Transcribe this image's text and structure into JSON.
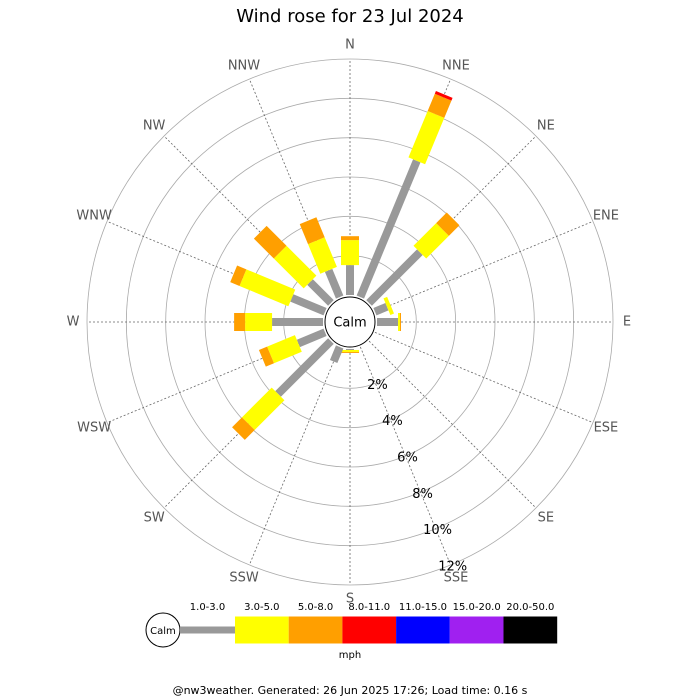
{
  "chart_data": {
    "type": "windrose",
    "title": "Wind rose for 23 Jul 2024",
    "categories": [
      "N",
      "NNE",
      "NE",
      "ENE",
      "E",
      "ESE",
      "SE",
      "SSE",
      "S",
      "SSW",
      "SW",
      "WSW",
      "W",
      "WNW",
      "NW",
      "NNW"
    ],
    "series": [
      {
        "name": "1.0-3.0",
        "color": "#999999",
        "values": [
          1.52,
          7.5,
          3.65,
          0.66,
          1.07,
          0,
          0,
          0,
          0.05,
          0.8,
          3.8,
          1.47,
          2.59,
          1.83,
          1.5,
          1.47
        ]
      },
      {
        "name": "3.0-5.0",
        "color": "#ffff00",
        "values": [
          1.27,
          2.55,
          1.63,
          0.2,
          0.1,
          0,
          0,
          0,
          0.1,
          0,
          2.14,
          1.53,
          1.37,
          2.69,
          2.15,
          1.63
        ]
      },
      {
        "name": "5.0-8.0",
        "color": "#ff9f00",
        "values": [
          0.2,
          0.95,
          0.76,
          0,
          0.05,
          0,
          0,
          0,
          0.05,
          0,
          0.71,
          0.45,
          0.56,
          0.51,
          1.43,
          1.1
        ]
      },
      {
        "name": "8.0-11.0",
        "color": "#ff0000",
        "values": [
          0,
          0.15,
          0,
          0,
          0,
          0,
          0,
          0,
          0,
          0,
          0,
          0,
          0,
          0,
          0,
          0
        ]
      },
      {
        "name": "11.0-15.0",
        "color": "#0000ff",
        "values": [
          0,
          0,
          0,
          0,
          0,
          0,
          0,
          0,
          0,
          0,
          0,
          0,
          0,
          0,
          0,
          0
        ]
      },
      {
        "name": "15.0-20.0",
        "color": "#a020f0",
        "values": [
          0,
          0,
          0,
          0,
          0,
          0,
          0,
          0,
          0,
          0,
          0,
          0,
          0,
          0,
          0,
          0
        ]
      },
      {
        "name": "20.0-50.0",
        "color": "#000000",
        "values": [
          0,
          0,
          0,
          0,
          0,
          0,
          0,
          0,
          0,
          0,
          0,
          0,
          0,
          0,
          0,
          0
        ]
      }
    ],
    "rlim": [
      0,
      12
    ],
    "rticks": [
      {
        "value": 2,
        "label": "2%"
      },
      {
        "value": 4,
        "label": "4%"
      },
      {
        "value": 6,
        "label": "6%"
      },
      {
        "value": 8,
        "label": "8%"
      },
      {
        "value": 10,
        "label": "10%"
      },
      {
        "value": 12,
        "label": "12%"
      }
    ],
    "calm_label": "Calm",
    "legend_unit": "mph",
    "footer": "@nw3weather.  Generated: 26 Jun 2025 17:26; Load time: 0.16 s"
  }
}
